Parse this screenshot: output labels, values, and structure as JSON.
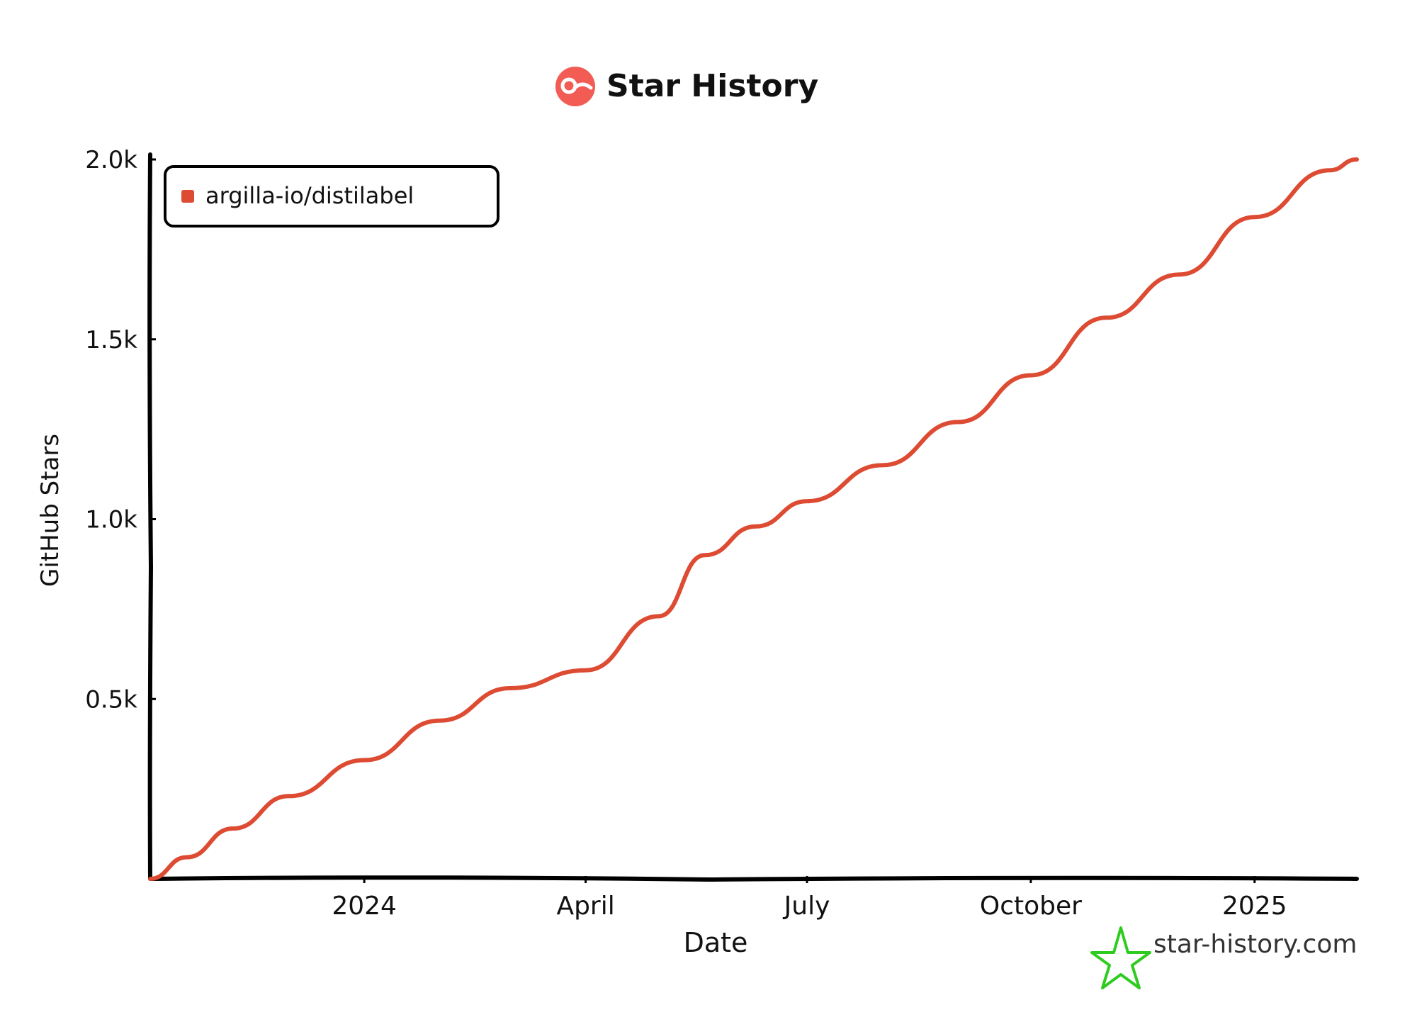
{
  "header": {
    "title": "Star History"
  },
  "footer": {
    "watermark": "star-history.com"
  },
  "colors": {
    "series": "#dd4b33",
    "logo": "#f25c54",
    "watermark_icon": "#2ecc1f",
    "axis": "#000000",
    "text": "#111111"
  },
  "icons": {
    "title_logo": "star-history-logo-icon",
    "watermark": "star-outline-icon"
  },
  "chart_data": {
    "type": "line",
    "title": "Star History",
    "xlabel": "Date",
    "ylabel": "GitHub Stars",
    "x_scale": "time",
    "xlim": [
      "2023-10-05",
      "2025-02-12"
    ],
    "ylim": [
      0,
      2000
    ],
    "x_ticks": [
      {
        "date": "2024-01-01",
        "label": "2024"
      },
      {
        "date": "2024-04-01",
        "label": "April"
      },
      {
        "date": "2024-07-01",
        "label": "July"
      },
      {
        "date": "2024-10-01",
        "label": "October"
      },
      {
        "date": "2025-01-01",
        "label": "2025"
      }
    ],
    "y_ticks": [
      {
        "value": 500,
        "label": "0.5k"
      },
      {
        "value": 1000,
        "label": "1.0k"
      },
      {
        "value": 1500,
        "label": "1.5k"
      },
      {
        "value": 2000,
        "label": "2.0k"
      }
    ],
    "grid": false,
    "legend_position": "top-left",
    "series": [
      {
        "name": "argilla-io/distilabel",
        "color": "#dd4b33",
        "points": [
          {
            "x": "2023-10-05",
            "y": 0
          },
          {
            "x": "2023-10-20",
            "y": 60
          },
          {
            "x": "2023-11-08",
            "y": 140
          },
          {
            "x": "2023-12-01",
            "y": 230
          },
          {
            "x": "2024-01-01",
            "y": 330
          },
          {
            "x": "2024-02-01",
            "y": 440
          },
          {
            "x": "2024-03-01",
            "y": 530
          },
          {
            "x": "2024-04-01",
            "y": 580
          },
          {
            "x": "2024-05-01",
            "y": 730
          },
          {
            "x": "2024-05-20",
            "y": 900
          },
          {
            "x": "2024-06-10",
            "y": 980
          },
          {
            "x": "2024-07-01",
            "y": 1050
          },
          {
            "x": "2024-08-01",
            "y": 1150
          },
          {
            "x": "2024-09-01",
            "y": 1270
          },
          {
            "x": "2024-10-01",
            "y": 1400
          },
          {
            "x": "2024-11-01",
            "y": 1560
          },
          {
            "x": "2024-12-01",
            "y": 1680
          },
          {
            "x": "2025-01-01",
            "y": 1840
          },
          {
            "x": "2025-02-01",
            "y": 1970
          },
          {
            "x": "2025-02-12",
            "y": 2000
          }
        ]
      }
    ]
  }
}
